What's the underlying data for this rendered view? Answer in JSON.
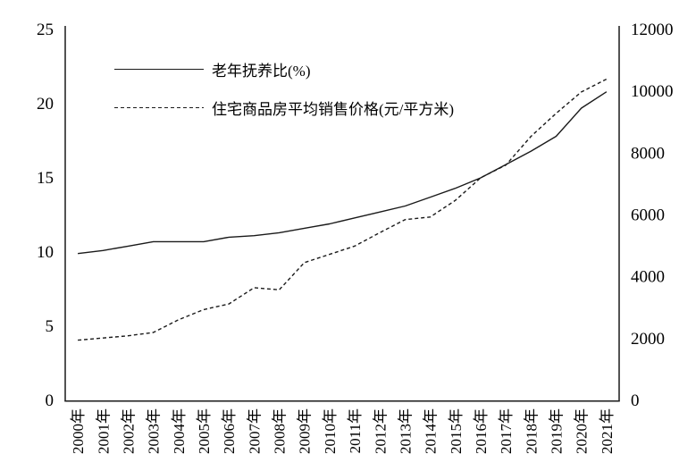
{
  "figure": {
    "background": "#ffffff",
    "line_color": "#1a1a1a",
    "text_color": "#000000"
  },
  "chart_data": {
    "type": "line",
    "title": "",
    "x": [
      "2000年",
      "2001年",
      "2002年",
      "2003年",
      "2004年",
      "2005年",
      "2006年",
      "2007年",
      "2008年",
      "2009年",
      "2010年",
      "2011年",
      "2012年",
      "2013年",
      "2014年",
      "2015年",
      "2016年",
      "2017年",
      "2018年",
      "2019年",
      "2020年",
      "2021年"
    ],
    "series": [
      {
        "name": "老年抚养比(%)",
        "axis": "left",
        "line_style": "solid",
        "values": [
          9.9,
          10.1,
          10.4,
          10.7,
          10.7,
          10.7,
          11.0,
          11.1,
          11.3,
          11.6,
          11.9,
          12.3,
          12.7,
          13.1,
          13.7,
          14.3,
          15.0,
          15.9,
          16.8,
          17.8,
          19.7,
          20.8
        ]
      },
      {
        "name": "住宅商品房平均销售价格(元/平方米)",
        "axis": "right",
        "line_style": "dashed",
        "values": [
          1948,
          2017,
          2092,
          2197,
          2608,
          2937,
          3119,
          3645,
          3576,
          4459,
          4725,
          4993,
          5430,
          5850,
          5933,
          6473,
          7203,
          7614,
          8544,
          9287,
          9980,
          10396
        ]
      }
    ],
    "left_axis": {
      "min": 0,
      "max": 25,
      "ticks": [
        0,
        5,
        10,
        15,
        20,
        25
      ]
    },
    "right_axis": {
      "min": 0,
      "max": 12000,
      "ticks": [
        0,
        2000,
        4000,
        6000,
        8000,
        10000,
        12000
      ]
    },
    "grid": false,
    "legend_position": "top-left-inside"
  }
}
